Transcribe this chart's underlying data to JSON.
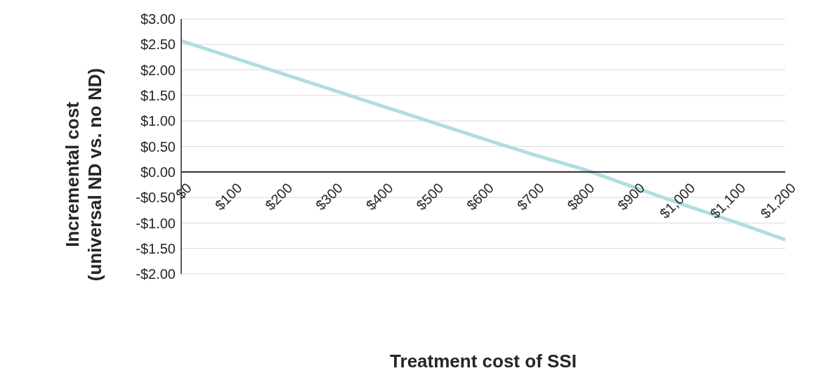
{
  "chart_data": {
    "type": "line",
    "xlabel": "Treatment cost of SSI",
    "ylabel": "Incremental cost\n(universal ND vs. no ND)",
    "categories": [
      "$0",
      "$100",
      "$200",
      "$300",
      "$400",
      "$500",
      "$600",
      "$700",
      "$800",
      "$900",
      "$1,000",
      "$1,100",
      "$1,200"
    ],
    "series": [
      {
        "color": "#b0dde0",
        "values": [
          2.57,
          2.25,
          1.93,
          1.61,
          1.29,
          0.97,
          0.65,
          0.34,
          0.05,
          -0.3,
          -0.65,
          -0.98,
          -1.33
        ]
      }
    ],
    "ylim": [
      -2,
      3
    ],
    "yticks": [
      {
        "value": -2,
        "label": "-$2.00"
      },
      {
        "value": -1.5,
        "label": "-$1.50"
      },
      {
        "value": -1,
        "label": "-$1.00"
      },
      {
        "value": -0.5,
        "label": "-$0.50"
      },
      {
        "value": 0,
        "label": "$0.00"
      },
      {
        "value": 0.5,
        "label": "$0.50"
      },
      {
        "value": 1,
        "label": "$1.00"
      },
      {
        "value": 1.5,
        "label": "$1.50"
      },
      {
        "value": 2,
        "label": "$2.00"
      },
      {
        "value": 2.5,
        "label": "$2.50"
      },
      {
        "value": 3,
        "label": "$3.00"
      }
    ],
    "grid": "y",
    "legend": false,
    "marker": "none",
    "line_style": "solid"
  }
}
